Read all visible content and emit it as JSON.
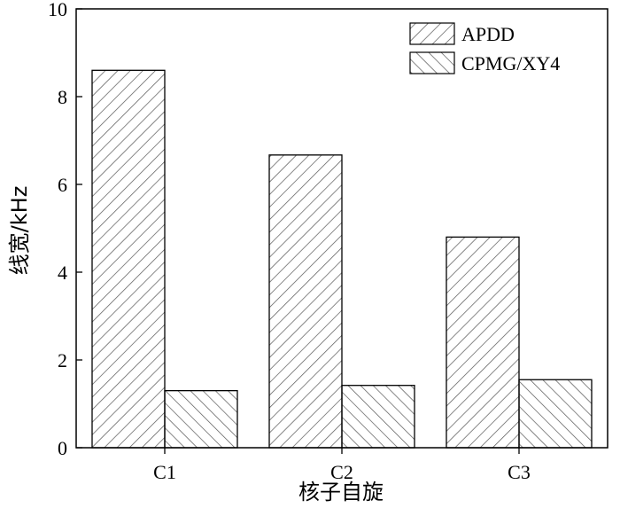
{
  "chart_data": {
    "type": "bar",
    "categories": [
      "C1",
      "C2",
      "C3"
    ],
    "series": [
      {
        "name": "APDD",
        "values": [
          8.6,
          6.67,
          4.8
        ],
        "pattern": "hatch-forward"
      },
      {
        "name": "CPMG/XY4",
        "values": [
          1.3,
          1.42,
          1.55
        ],
        "pattern": "hatch-back"
      }
    ],
    "xlabel": "核子自旋",
    "ylabel": "线宽/kHz",
    "ylim": [
      0,
      10
    ],
    "yticks": [
      0,
      2,
      4,
      6,
      8,
      10
    ],
    "grid": false,
    "legend_position": "top-right",
    "colors": {
      "bar_edge": "#000000",
      "hatch": "#555555",
      "axis": "#000000"
    }
  }
}
